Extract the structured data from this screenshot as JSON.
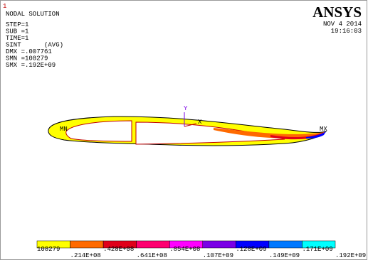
{
  "window_number": "1",
  "title": "NODAL SOLUTION",
  "info": [
    "STEP=1",
    "SUB =1",
    "TIME=1",
    "SINT      (AVG)",
    "DMX =.007761",
    "SMN =108279",
    "SMX =.192E+09"
  ],
  "logo": "ANSYS",
  "date": "NOV  4 2014",
  "time": "19:16:03",
  "min_marker": "MN",
  "max_marker": "MX",
  "triad": {
    "y": "Y",
    "x": "X"
  },
  "legend": {
    "colors": [
      "#ffff00",
      "#ff6a00",
      "#e0001a",
      "#ff0070",
      "#ff00ff",
      "#7a00e6",
      "#0000ff",
      "#0078ff",
      "#00ffff"
    ],
    "labels": [
      "108279",
      ".214E+08",
      ".428E+08",
      ".641E+08",
      ".854E+08",
      ".107E+09",
      ".128E+09",
      ".149E+09",
      ".171E+09",
      ".192E+09"
    ]
  }
}
